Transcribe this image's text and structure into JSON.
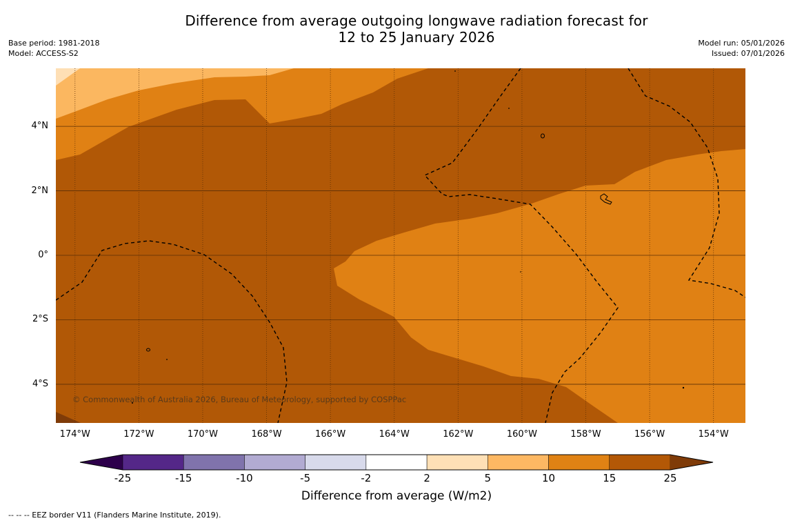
{
  "title": {
    "line1": "Difference from average outgoing longwave radiation forecast for",
    "line2": "12 to 25 January 2026"
  },
  "meta": {
    "base_period": "Base period: 1981-2018",
    "model": "Model: ACCESS-S2",
    "model_run": "Model run: 05/01/2026",
    "issued": "Issued: 07/01/2026"
  },
  "copyright": "© Commonwealth of Australia 2026, Bureau of Meteorology, supported by COSPPac",
  "eez_note": "--  --  -- EEZ border V11 (Flanders Marine Institute, 2019).",
  "map": {
    "lon_range": [
      -174.6,
      -153.0
    ],
    "lat_range": [
      -5.2,
      5.8
    ],
    "lat_labels": [
      {
        "lat": 4,
        "label": "4°N"
      },
      {
        "lat": 2,
        "label": "2°N"
      },
      {
        "lat": 0,
        "label": "0°"
      },
      {
        "lat": -2,
        "label": "2°S"
      },
      {
        "lat": -4,
        "label": "4°S"
      }
    ],
    "lon_labels": [
      {
        "lon": -174,
        "label": "174°W"
      },
      {
        "lon": -172,
        "label": "172°W"
      },
      {
        "lon": -170,
        "label": "170°W"
      },
      {
        "lon": -168,
        "label": "168°W"
      },
      {
        "lon": -166,
        "label": "166°W"
      },
      {
        "lon": -164,
        "label": "164°W"
      },
      {
        "lon": -162,
        "label": "162°W"
      },
      {
        "lon": -160,
        "label": "160°W"
      },
      {
        "lon": -158,
        "label": "158°W"
      },
      {
        "lon": -156,
        "label": "156°W"
      },
      {
        "lon": -154,
        "label": "154°W"
      }
    ],
    "colors": {
      "c5_10": "#fbb760",
      "c2_5": "#fedfb5",
      "c10_15": "#e08114",
      "c15_25": "#b15806",
      "c_over25": "#7f3b08",
      "gridline": "#5a2e06",
      "eez": "#000000"
    }
  },
  "colorbar": {
    "label": "Difference from average (W/m2)",
    "ticks": [
      "-25",
      "-15",
      "-10",
      "-5",
      "-2",
      "2",
      "5",
      "10",
      "15",
      "25"
    ],
    "bins": [
      {
        "range": "-25 to -15",
        "color": "#542788"
      },
      {
        "range": "-15 to -10",
        "color": "#8073ac"
      },
      {
        "range": "-10 to -5",
        "color": "#b2abd2"
      },
      {
        "range": "-5 to -2",
        "color": "#d8daeb"
      },
      {
        "range": "-2 to 2",
        "color": "#ffffff"
      },
      {
        "range": "2 to 5",
        "color": "#fee0b6"
      },
      {
        "range": "5 to 10",
        "color": "#fdb863"
      },
      {
        "range": "10 to 15",
        "color": "#e08214"
      },
      {
        "range": "15 to 25",
        "color": "#b35806"
      }
    ],
    "under_color": "#2d004b",
    "over_color": "#7f3b08"
  }
}
